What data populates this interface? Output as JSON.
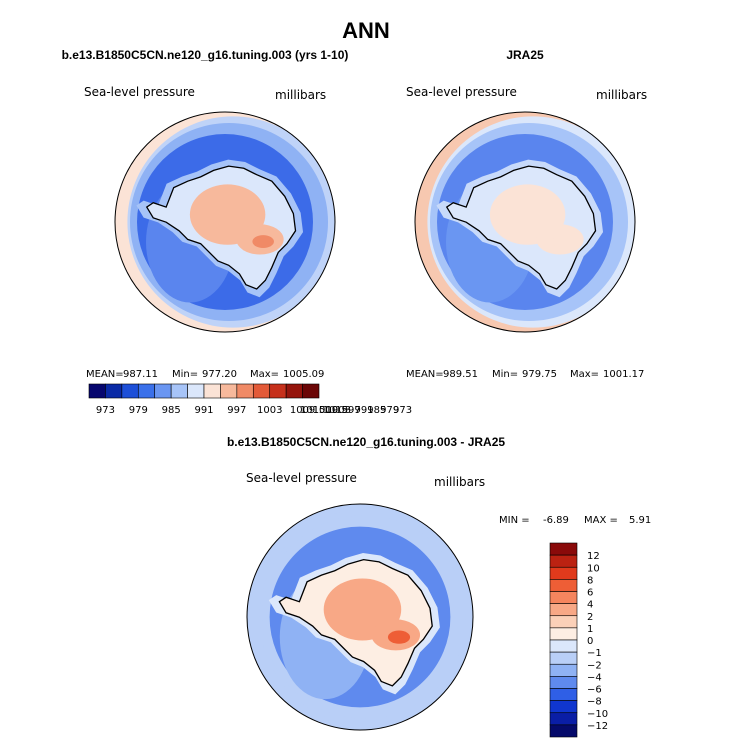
{
  "page_title": "ANN",
  "chart_data": [
    {
      "type": "heatmap",
      "projection": "polar-stereographic-south",
      "title": "b.e13.B1850C5CN.ne120_g16.tuning.003 (yrs 1-10)",
      "variable": "Sea-level pressure",
      "units": "millibars",
      "stats": {
        "mean_label": "MEAN=",
        "mean": "987.11",
        "min_label": "Min=",
        "min": "977.20",
        "max_label": "Max=",
        "max": "1005.09"
      },
      "levels": [
        "973",
        "979",
        "985",
        "991",
        "997",
        "1003",
        "1009",
        "1015"
      ],
      "colors": [
        "#06066e",
        "#0a2aa6",
        "#1d4fd8",
        "#3a70ea",
        "#6a96f2",
        "#a7c4f8",
        "#dbe7fb",
        "#fbe3d6",
        "#f7b99c",
        "#f08a66",
        "#e35a38",
        "#c6301b",
        "#95140c",
        "#6b0606"
      ],
      "fields": {
        "ocean": "#3c6be8",
        "south_ocean": "#5a85ee",
        "far_ring": "#8fb2f4",
        "edge_ring": "#bfd3f8",
        "rim": "#fbe3d6",
        "coast": "#a7c4f8",
        "continent": "#dbe7fb",
        "interior": "#f7b99c",
        "core": "#f08a66"
      }
    },
    {
      "type": "heatmap",
      "projection": "polar-stereographic-south",
      "title": "JRA25",
      "variable": "Sea-level pressure",
      "units": "millibars",
      "stats": {
        "mean_label": "MEAN=",
        "mean": "989.51",
        "min_label": "Min=",
        "min": "979.75",
        "max_label": "Max=",
        "max": "1001.17"
      },
      "levels": [
        "973",
        "979",
        "985",
        "991",
        "997",
        "1003",
        "1009",
        "1015"
      ],
      "colors": [
        "#06066e",
        "#0a2aa6",
        "#1d4fd8",
        "#3a70ea",
        "#6a96f2",
        "#a7c4f8",
        "#dbe7fb",
        "#fbe3d6",
        "#f7b99c",
        "#f08a66",
        "#e35a38",
        "#c6301b",
        "#95140c",
        "#6b0606"
      ],
      "fields": {
        "ocean": "#5a85ee",
        "south_ocean": "#6a96f2",
        "far_ring": "#a7c4f8",
        "edge_ring": "#dbe7fb",
        "rim": "#f7c8b0",
        "coast": "#c8dafa",
        "continent": "#dbe7fb",
        "interior": "#fbe3d6",
        "core": "#fbe3d6"
      }
    },
    {
      "type": "heatmap",
      "projection": "polar-stereographic-south",
      "title": "b.e13.B1850C5CN.ne120_g16.tuning.003 - JRA25",
      "variable": "Sea-level pressure",
      "units": "millibars",
      "stats": {
        "min_label": "MIN =",
        "min": "-6.89",
        "max_label": "MAX =",
        "max": "5.91"
      },
      "levels": [
        "12",
        "10",
        "8",
        "6",
        "4",
        "2",
        "1",
        "0",
        "−1",
        "−2",
        "−4",
        "−6",
        "−8",
        "−10",
        "−12"
      ],
      "colors": [
        "#8a0a0a",
        "#bb2212",
        "#e03a1c",
        "#ee5e36",
        "#f5855e",
        "#f8a886",
        "#fbd0b8",
        "#fdeee3",
        "#dbe7fb",
        "#b9cff7",
        "#8fb2f4",
        "#5f8aee",
        "#2f5fe6",
        "#1036cf",
        "#0a1ea6",
        "#050a6a"
      ],
      "fields": {
        "ocean": "#5f8aee",
        "south_ocean": "#8fb2f4",
        "far_ring": "#b9cff7",
        "edge_ring": "#b9cff7",
        "rim": "#b9cff7",
        "coast": "#dbe7fb",
        "continent": "#fdeee3",
        "interior": "#f8a886",
        "core": "#ee5e36"
      }
    }
  ]
}
